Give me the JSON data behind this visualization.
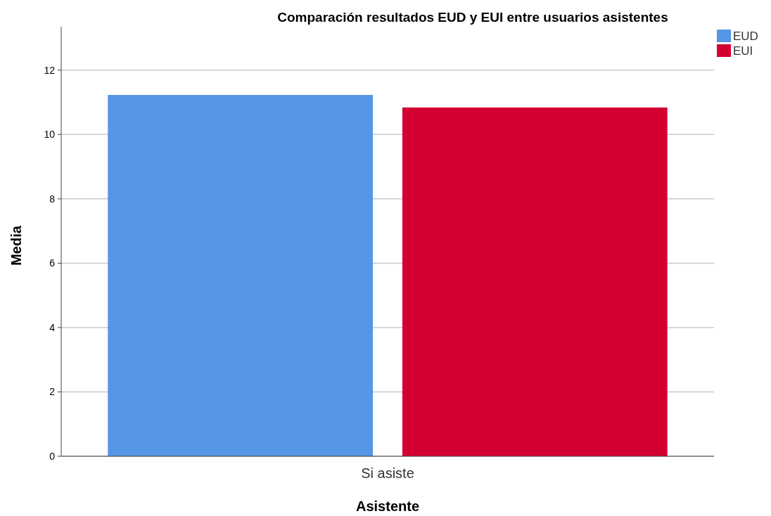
{
  "chart_data": {
    "type": "bar",
    "title": "Comparación resultados EUD y EUI entre usuarios asistentes",
    "xlabel": "Asistente",
    "ylabel": "Media",
    "categories": [
      "Si asiste"
    ],
    "series": [
      {
        "name": "EUD",
        "color": "#5596e6",
        "values": [
          11.23
        ]
      },
      {
        "name": "EUI",
        "color": "#d50032",
        "values": [
          10.84
        ]
      }
    ],
    "ylim": [
      0,
      13.35
    ],
    "yticks": [
      0,
      2,
      4,
      6,
      8,
      10,
      12
    ],
    "grid": "y",
    "legend": "top right"
  }
}
